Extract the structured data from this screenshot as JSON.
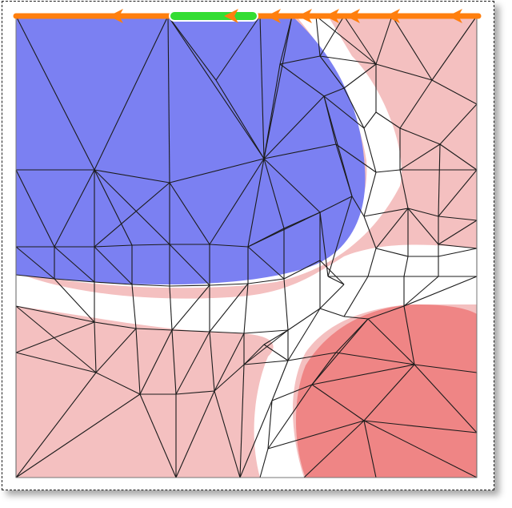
{
  "diagram": {
    "colors": {
      "background": "#ffffff",
      "blue_region": "#7b80f2",
      "light_red_region": "#f4c0c0",
      "dark_red_region": "#ef8585",
      "gap_region": "#ffffff",
      "mesh_lines": "#1b1b1b",
      "boundary_flow": "#ff7f0e",
      "boundary_highlight": "#33dd33",
      "frame": "#222222"
    },
    "icons": {
      "flow_arrow": "left-arrow-icon"
    }
  }
}
